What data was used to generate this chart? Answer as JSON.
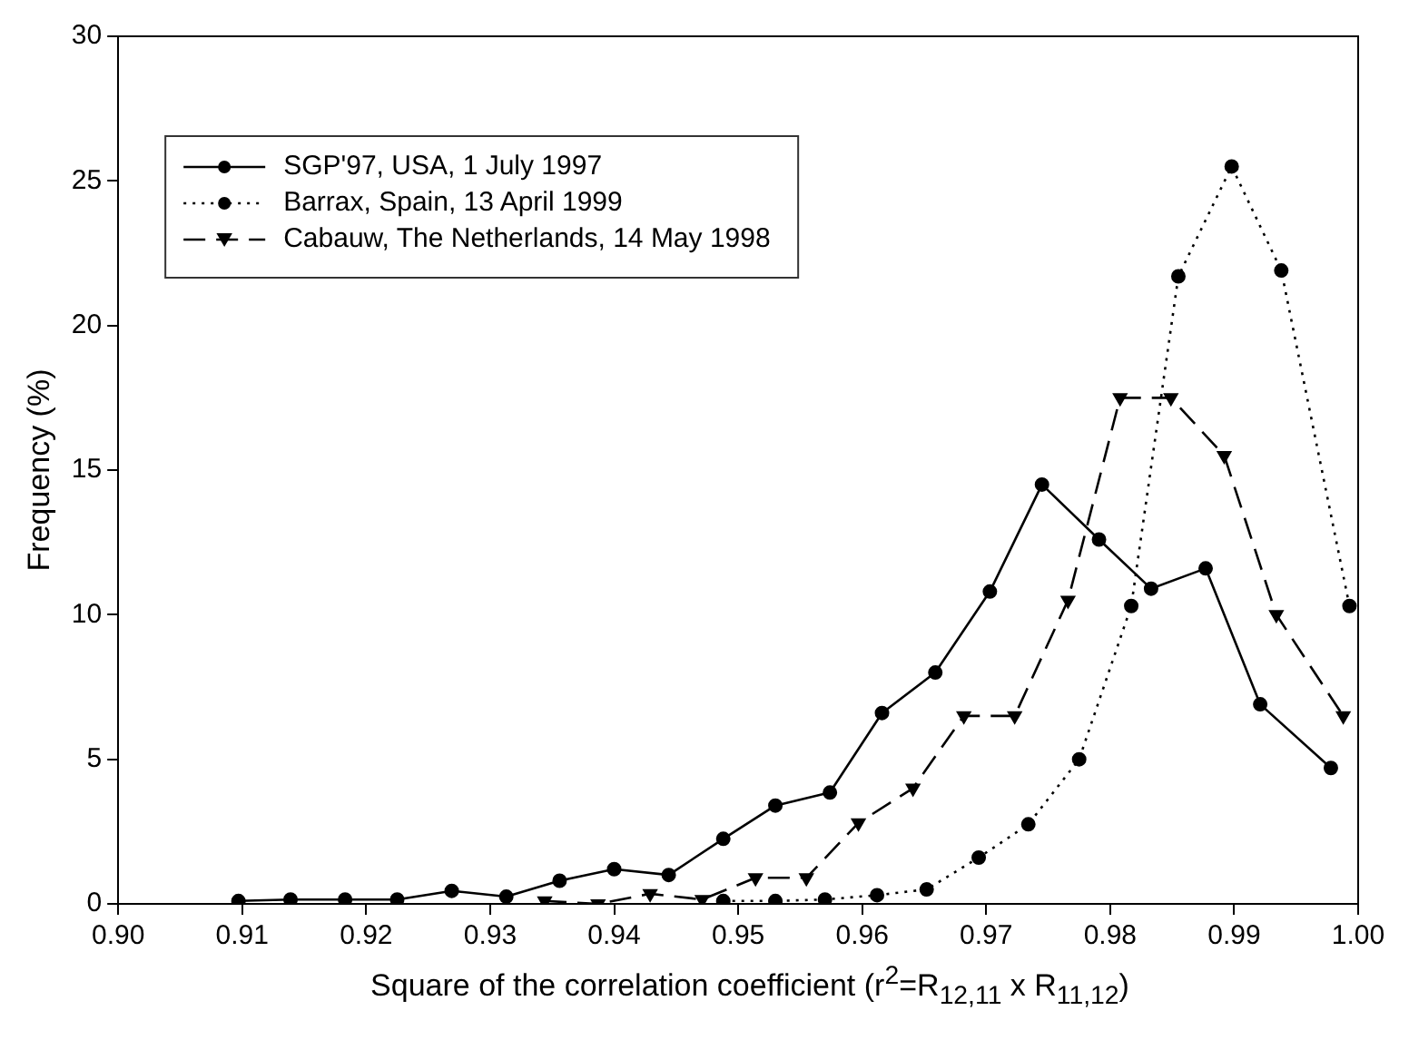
{
  "chart_data": {
    "type": "line",
    "xlabel": "Square of the correlation coefficient (r$^{2}$=R$_{12,11}$ x R$_{11,12}$)",
    "ylabel": "Frequency (%)",
    "xlim": [
      0.9,
      1.0
    ],
    "xticks": [
      {
        "value": 0.9,
        "label": "0.90"
      },
      {
        "value": 0.91,
        "label": "0.91"
      },
      {
        "value": 0.92,
        "label": "0.92"
      },
      {
        "value": 0.93,
        "label": "0.93"
      },
      {
        "value": 0.94,
        "label": "0.94"
      },
      {
        "value": 0.95,
        "label": "0.95"
      },
      {
        "value": 0.96,
        "label": "0.96"
      },
      {
        "value": 0.97,
        "label": "0.97"
      },
      {
        "value": 0.98,
        "label": "0.98"
      },
      {
        "value": 0.99,
        "label": "0.99"
      },
      {
        "value": 1.0,
        "label": "1.00"
      }
    ],
    "ylim": [
      0,
      30
    ],
    "yticks": [
      0,
      5,
      10,
      15,
      20,
      25,
      30
    ],
    "grid": false,
    "legend": "top left",
    "series": [
      {
        "name": "SGP'97, USA, 1 July 1997",
        "color": "#000000",
        "marker": "circle",
        "line_style": "solid",
        "x": [
          0.9097,
          0.9139,
          0.9183,
          0.9225,
          0.9269,
          0.9313,
          0.9356,
          0.94,
          0.9444,
          0.9488,
          0.953,
          0.9574,
          0.9616,
          0.9659,
          0.9703,
          0.9745,
          0.9791,
          0.9833,
          0.9877,
          0.9921,
          0.9978
        ],
        "values": [
          0.1,
          0.15,
          0.15,
          0.15,
          0.45,
          0.25,
          0.8,
          1.2,
          1.0,
          2.25,
          3.4,
          3.85,
          6.6,
          8.0,
          10.8,
          14.5,
          12.6,
          10.9,
          11.6,
          6.9,
          4.7
        ]
      },
      {
        "name": "Barrax, Spain, 13 April 1999",
        "color": "#000000",
        "marker": "circle",
        "line_style": "dotted",
        "x": [
          0.9488,
          0.953,
          0.957,
          0.9612,
          0.9652,
          0.9694,
          0.9734,
          0.9775,
          0.9817,
          0.9855,
          0.9898,
          0.9938,
          0.9993
        ],
        "values": [
          0.1,
          0.1,
          0.15,
          0.3,
          0.5,
          1.6,
          2.75,
          5.0,
          10.3,
          21.7,
          25.5,
          21.9,
          10.3
        ]
      },
      {
        "name": "Cabauw, The Netherlands, 14 May 1998",
        "color": "#000000",
        "marker": "triangle",
        "line_style": "dashed",
        "x": [
          0.9344,
          0.9387,
          0.9429,
          0.9471,
          0.9514,
          0.9555,
          0.9597,
          0.9641,
          0.9682,
          0.9723,
          0.9766,
          0.9808,
          0.9849,
          0.9892,
          0.9934,
          0.9988
        ],
        "values": [
          0.1,
          0.0,
          0.35,
          0.15,
          0.9,
          0.9,
          2.8,
          4.0,
          6.5,
          6.5,
          10.5,
          17.5,
          17.5,
          15.5,
          10.0,
          6.5
        ]
      }
    ]
  }
}
